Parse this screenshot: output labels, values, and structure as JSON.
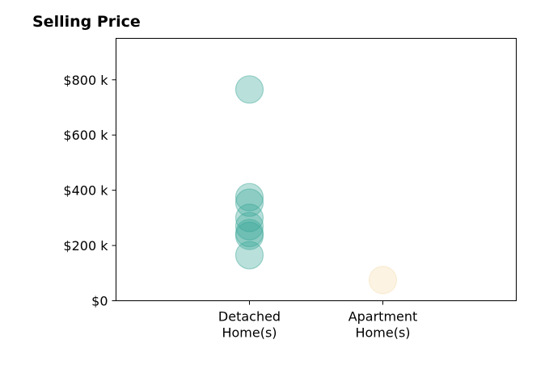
{
  "chart_data": {
    "type": "scatter",
    "title": "Selling Price",
    "xlabel": "",
    "ylabel": "",
    "categories": [
      "Detached\nHome(s)",
      "Apartment\nHome(s)"
    ],
    "x_range": [
      0,
      3
    ],
    "y_range": [
      0,
      950000
    ],
    "y_ticks": [
      {
        "value": 0,
        "label": "$0"
      },
      {
        "value": 200000,
        "label": "$200 k"
      },
      {
        "value": 400000,
        "label": "$400 k"
      },
      {
        "value": 600000,
        "label": "$600 k"
      },
      {
        "value": 800000,
        "label": "$800 k"
      }
    ],
    "grid": false,
    "legend": "none",
    "series": [
      {
        "category_index": 0,
        "color": "#3aa797",
        "values": [
          765000,
          375000,
          355000,
          300000,
          270000,
          245000,
          235000,
          165000
        ]
      },
      {
        "category_index": 1,
        "color": "#f5deb0",
        "values": [
          75000
        ]
      }
    ]
  }
}
